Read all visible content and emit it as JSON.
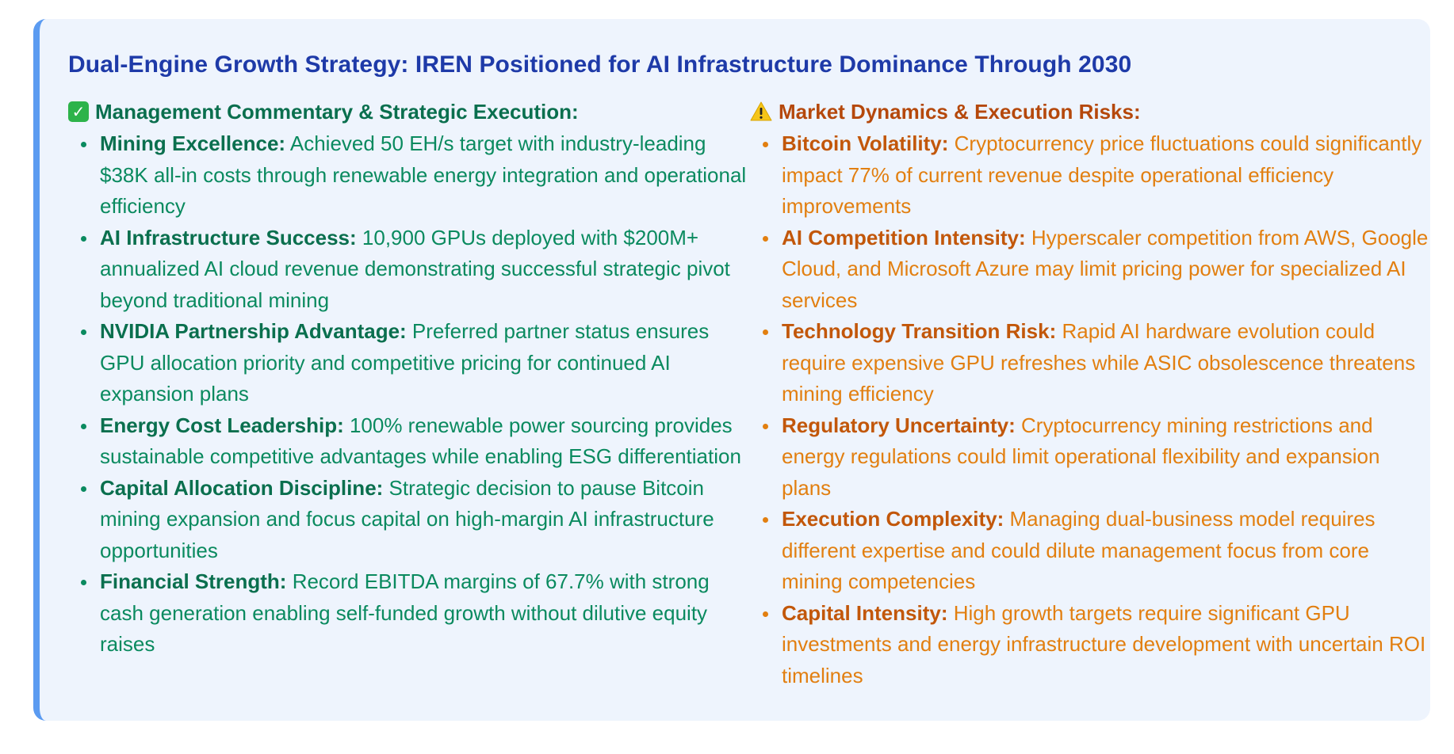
{
  "title": "Dual-Engine Growth Strategy: IREN Positioned for AI Infrastructure Dominance Through 2030",
  "left": {
    "icon": "check-mark-icon",
    "heading": "Management Commentary & Strategic Execution:",
    "items": [
      {
        "label": "Mining Excellence:",
        "text": " Achieved 50 EH/s target with industry-leading $38K all-in costs through renewable energy integration and operational efficiency"
      },
      {
        "label": "AI Infrastructure Success:",
        "text": " 10,900 GPUs deployed with $200M+ annualized AI cloud revenue demonstrating successful strategic pivot beyond traditional mining"
      },
      {
        "label": "NVIDIA Partnership Advantage:",
        "text": " Preferred partner status ensures GPU allocation priority and competitive pricing for continued AI expansion plans"
      },
      {
        "label": "Energy Cost Leadership:",
        "text": " 100% renewable power sourcing provides sustainable competitive advantages while enabling ESG differentiation"
      },
      {
        "label": "Capital Allocation Discipline:",
        "text": " Strategic decision to pause Bitcoin mining expansion and focus capital on high-margin AI infrastructure opportunities"
      },
      {
        "label": "Financial Strength:",
        "text": " Record EBITDA margins of 67.7% with strong cash generation enabling self-funded growth without dilutive equity raises"
      }
    ]
  },
  "right": {
    "icon": "warning-icon",
    "heading": "Market Dynamics & Execution Risks:",
    "items": [
      {
        "label": "Bitcoin Volatility:",
        "text": " Cryptocurrency price fluctuations could significantly impact 77% of current revenue despite operational efficiency improvements"
      },
      {
        "label": "AI Competition Intensity:",
        "text": " Hyperscaler competition from AWS, Google Cloud, and Microsoft Azure may limit pricing power for specialized AI services"
      },
      {
        "label": "Technology Transition Risk:",
        "text": " Rapid AI hardware evolution could require expensive GPU refreshes while ASIC obsolescence threatens mining efficiency"
      },
      {
        "label": "Regulatory Uncertainty:",
        "text": " Cryptocurrency mining restrictions and energy regulations could limit operational flexibility and expansion plans"
      },
      {
        "label": "Execution Complexity:",
        "text": " Managing dual-business model requires different expertise and could dilute management focus from core mining competencies"
      },
      {
        "label": "Capital Intensity:",
        "text": " High growth targets require significant GPU investments and energy infrastructure development with uncertain ROI timelines"
      }
    ]
  },
  "colors": {
    "card_bg": "#eef4fd",
    "accent_border": "#5b9bf1",
    "title": "#1e3aa8",
    "positive": "#0a8a5f",
    "risk": "#e27f10"
  }
}
